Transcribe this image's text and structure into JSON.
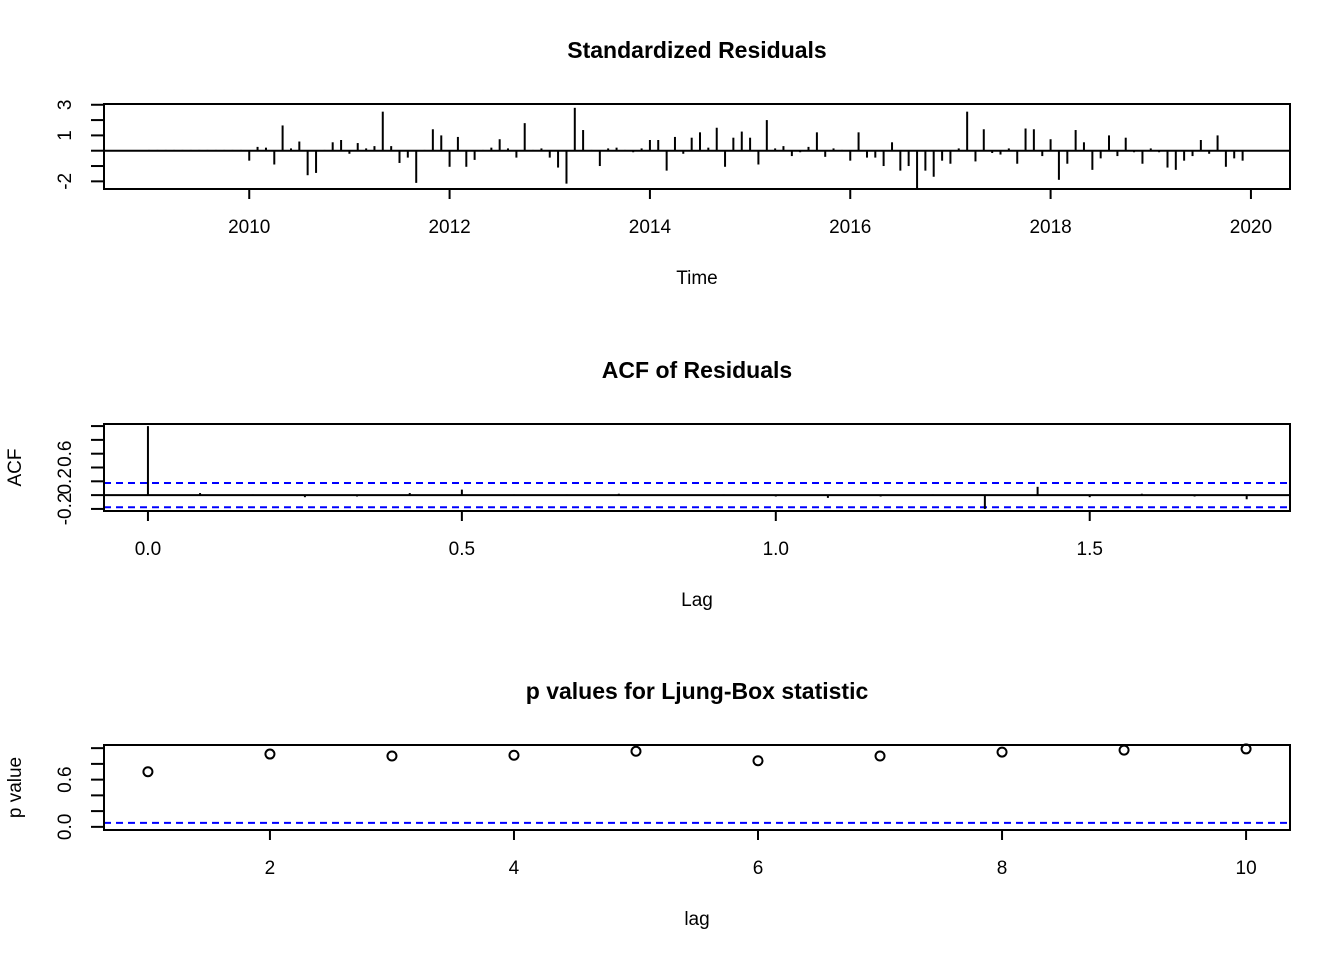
{
  "chart_data": [
    {
      "type": "stem",
      "title": "Standardized Residuals",
      "x_label": "Time",
      "x": [
        2009,
        2009.083,
        2009.167,
        2009.25,
        2009.333,
        2009.417,
        2009.5,
        2009.583,
        2009.667,
        2009.75,
        2009.833,
        2009.917,
        2010,
        2010.083,
        2010.167,
        2010.25,
        2010.333,
        2010.417,
        2010.5,
        2010.583,
        2010.667,
        2010.75,
        2010.833,
        2010.917,
        2011,
        2011.083,
        2011.167,
        2011.25,
        2011.333,
        2011.417,
        2011.5,
        2011.583,
        2011.667,
        2011.75,
        2011.833,
        2011.917,
        2012,
        2012.083,
        2012.167,
        2012.25,
        2012.333,
        2012.417,
        2012.5,
        2012.583,
        2012.667,
        2012.75,
        2012.833,
        2012.917,
        2013,
        2013.083,
        2013.167,
        2013.25,
        2013.333,
        2013.417,
        2013.5,
        2013.583,
        2013.667,
        2013.75,
        2013.833,
        2013.917,
        2014,
        2014.083,
        2014.167,
        2014.25,
        2014.333,
        2014.417,
        2014.5,
        2014.583,
        2014.667,
        2014.75,
        2014.833,
        2014.917,
        2015,
        2015.083,
        2015.167,
        2015.25,
        2015.333,
        2015.417,
        2015.5,
        2015.583,
        2015.667,
        2015.75,
        2015.833,
        2015.917,
        2016,
        2016.083,
        2016.167,
        2016.25,
        2016.333,
        2016.417,
        2016.5,
        2016.583,
        2016.667,
        2016.75,
        2016.833,
        2016.917,
        2017,
        2017.083,
        2017.167,
        2017.25,
        2017.333,
        2017.417,
        2017.5,
        2017.583,
        2017.667,
        2017.75,
        2017.833,
        2017.917,
        2018,
        2018.083,
        2018.167,
        2018.25,
        2018.333,
        2018.417,
        2018.5,
        2018.583,
        2018.667,
        2018.75,
        2018.833,
        2018.917,
        2019,
        2019.083,
        2019.167,
        2019.25,
        2019.333,
        2019.417,
        2019.5,
        2019.583,
        2019.667,
        2019.75,
        2019.833,
        2019.917
      ],
      "values": [
        0.05,
        0.05,
        0.05,
        0.05,
        0.05,
        0.05,
        0.05,
        0.05,
        0.05,
        0.05,
        0.05,
        0.05,
        -0.65,
        0.25,
        0.2,
        -0.9,
        1.65,
        0.15,
        0.6,
        -1.6,
        -1.45,
        0.05,
        0.55,
        0.7,
        -0.2,
        0.5,
        0.15,
        0.3,
        2.55,
        0.3,
        -0.8,
        -0.45,
        -2.1,
        0.05,
        1.4,
        1.0,
        -1.05,
        0.9,
        -1.05,
        -0.6,
        0.05,
        0.2,
        0.75,
        0.15,
        -0.45,
        1.8,
        0.05,
        0.15,
        -0.45,
        -1.1,
        -2.15,
        2.8,
        1.35,
        0.05,
        -1.0,
        0.15,
        0.2,
        0.05,
        -0.1,
        0.15,
        0.7,
        0.7,
        -1.3,
        0.9,
        -0.2,
        0.85,
        1.2,
        0.2,
        1.5,
        -1.05,
        0.85,
        1.25,
        0.85,
        -0.9,
        2.0,
        0.15,
        0.3,
        -0.35,
        -0.1,
        0.25,
        1.2,
        -0.4,
        0.15,
        0.05,
        -0.65,
        1.2,
        -0.45,
        -0.45,
        -1.0,
        0.55,
        -1.3,
        -1.0,
        -2.45,
        -1.3,
        -1.7,
        -0.65,
        -0.85,
        0.15,
        2.55,
        -0.7,
        1.4,
        -0.15,
        -0.25,
        0.15,
        -0.85,
        1.45,
        1.4,
        -0.35,
        0.75,
        -1.9,
        -0.85,
        1.35,
        0.55,
        -1.25,
        -0.5,
        1.0,
        -0.35,
        0.85,
        -0.1,
        -0.85,
        0.15,
        -0.1,
        -1.1,
        -1.25,
        -0.65,
        -0.35,
        0.7,
        -0.2,
        1.0,
        -1.05,
        -0.5,
        -0.65
      ],
      "color": "#000000",
      "xlim": [
        2008.55,
        2020.39
      ],
      "xticks": [
        2010,
        2012,
        2014,
        2016,
        2018,
        2020
      ],
      "ylim": [
        -2.5,
        3.05
      ],
      "yticks": [
        -2,
        1,
        3
      ],
      "yminor": [
        -1,
        0,
        2
      ],
      "hlines": [
        {
          "value": 0,
          "color": "#000000",
          "dashed": false
        }
      ]
    },
    {
      "type": "stem",
      "title": "ACF of Residuals",
      "x_label": "Lag",
      "y_label": "ACF",
      "x": [
        0,
        0.083,
        0.167,
        0.25,
        0.333,
        0.417,
        0.5,
        0.583,
        0.667,
        0.75,
        0.833,
        0.917,
        1,
        1.083,
        1.167,
        1.25,
        1.333,
        1.417,
        1.5,
        1.583,
        1.667,
        1.75
      ],
      "values": [
        1,
        0.03,
        0.01,
        -0.03,
        -0.02,
        0.03,
        0.08,
        0.01,
        0.01,
        0.02,
        0.0,
        0.01,
        -0.02,
        -0.04,
        -0.02,
        0.01,
        -0.2,
        0.12,
        -0.03,
        0.02,
        -0.02,
        -0.06
      ],
      "color": "#000000",
      "xlim": [
        -0.07,
        1.819
      ],
      "xticks": [
        {
          "value": 0,
          "label": "0.0"
        },
        0.5,
        {
          "value": 1,
          "label": "1.0"
        },
        1.5
      ],
      "ylim": [
        -0.23,
        1.03
      ],
      "yticks": [
        -0.2,
        0.2,
        0.6
      ],
      "yminor": [
        0,
        0.4,
        0.8,
        1
      ],
      "hlines": [
        {
          "value": 0,
          "color": "#000000",
          "dashed": false
        },
        {
          "value": 0.175,
          "color": "#0000ff",
          "dashed": true
        },
        {
          "value": -0.175,
          "color": "#0000ff",
          "dashed": true
        }
      ]
    },
    {
      "type": "scatter",
      "title": "p values for Ljung-Box statistic",
      "x_label": "lag",
      "y_label": "p value",
      "x": [
        1,
        2,
        3,
        4,
        5,
        6,
        7,
        8,
        9,
        10
      ],
      "values": [
        0.7,
        0.925,
        0.9,
        0.91,
        0.96,
        0.84,
        0.9,
        0.95,
        0.975,
        0.99
      ],
      "color": "#000000",
      "xlim": [
        0.64,
        10.36
      ],
      "xticks": [
        2,
        4,
        6,
        8,
        10
      ],
      "ylim": [
        -0.04,
        1.04
      ],
      "yticks": [
        {
          "value": 0,
          "label": "0.0"
        },
        0.6
      ],
      "yminor": [
        0.2,
        0.4,
        0.8,
        1
      ],
      "hlines": [
        {
          "value": 0.05,
          "color": "#0000ff",
          "dashed": true
        }
      ]
    }
  ]
}
